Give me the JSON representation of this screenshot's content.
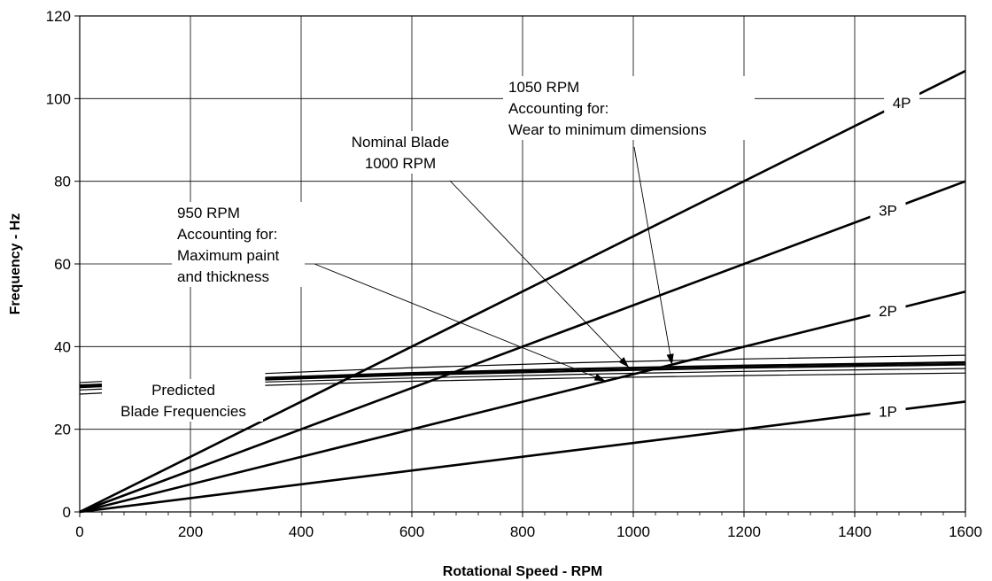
{
  "chart_data": {
    "type": "line",
    "xlabel": "Rotational Speed - RPM",
    "ylabel": "Frequency - Hz",
    "xlim": [
      0,
      1600
    ],
    "ylim": [
      0,
      120
    ],
    "xticks": [
      0,
      200,
      400,
      600,
      800,
      1000,
      1200,
      1400,
      1600
    ],
    "yticks": [
      0,
      20,
      40,
      60,
      80,
      100,
      120
    ],
    "grid": true,
    "series": [
      {
        "name": "1P",
        "x": [
          0,
          1600
        ],
        "y": [
          0,
          26.7
        ]
      },
      {
        "name": "2P",
        "x": [
          0,
          1600
        ],
        "y": [
          0,
          53.3
        ]
      },
      {
        "name": "3P",
        "x": [
          0,
          1600
        ],
        "y": [
          0,
          80.0
        ]
      },
      {
        "name": "4P",
        "x": [
          0,
          1600
        ],
        "y": [
          0,
          106.7
        ]
      }
    ],
    "blade_frequencies": [
      {
        "x": [
          0,
          300,
          600,
          900,
          1200,
          1600
        ],
        "y": [
          28.5,
          30.5,
          31.6,
          32.4,
          33.0,
          33.6
        ]
      },
      {
        "x": [
          0,
          300,
          600,
          900,
          1200,
          1600
        ],
        "y": [
          29.5,
          31.3,
          32.4,
          33.3,
          34.0,
          34.7
        ]
      },
      {
        "x": [
          0,
          300,
          600,
          900,
          1200,
          1600
        ],
        "y": [
          30.2,
          31.9,
          33.2,
          34.1,
          34.9,
          35.7
        ]
      },
      {
        "x": [
          0,
          300,
          600,
          900,
          1200,
          1600
        ],
        "y": [
          30.6,
          32.3,
          33.6,
          34.6,
          35.4,
          36.2
        ]
      },
      {
        "x": [
          0,
          300,
          600,
          900,
          1200,
          1600
        ],
        "y": [
          31.3,
          33.3,
          34.9,
          36.1,
          37.0,
          37.9
        ]
      }
    ],
    "annotations": [
      {
        "name": "predicted",
        "lines": [
          "Predicted",
          "Blade Frequencies"
        ]
      },
      {
        "name": "rpm950",
        "lines": [
          "950 RPM",
          "Accounting for:",
          "Maximum paint",
          "and thickness"
        ],
        "target_x": 950
      },
      {
        "name": "rpm1000",
        "lines": [
          "Nominal Blade",
          "1000 RPM"
        ],
        "target_x": 1000
      },
      {
        "name": "rpm1050",
        "lines": [
          "1050 RPM",
          "Accounting for:",
          "Wear to minimum dimensions"
        ],
        "target_x": 1050
      }
    ]
  }
}
